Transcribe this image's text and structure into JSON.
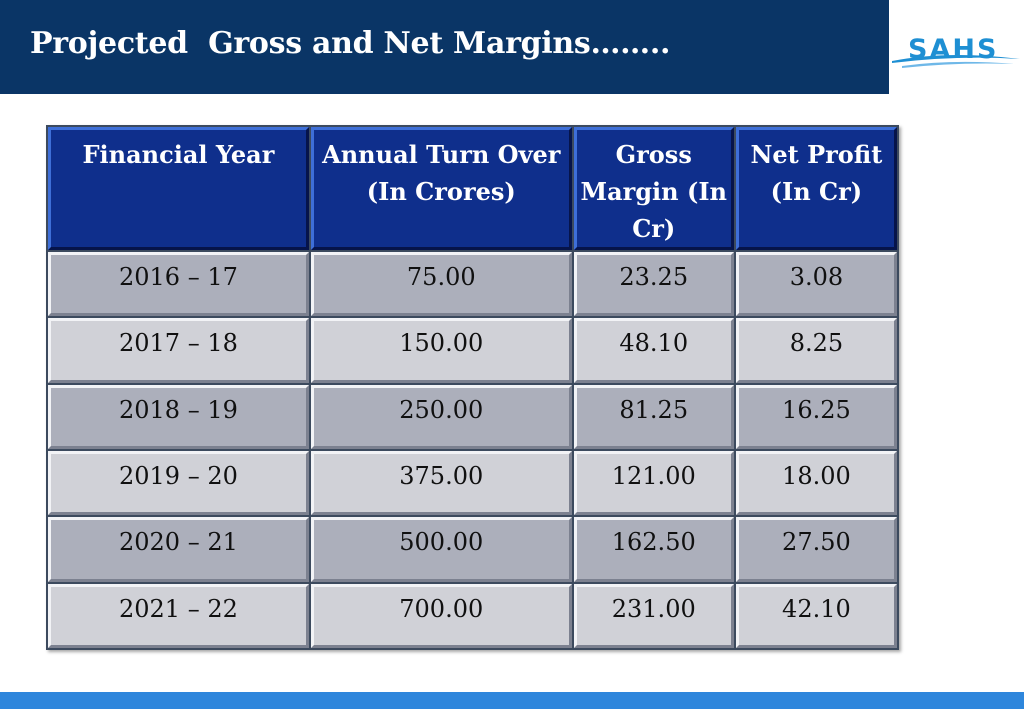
{
  "title": "Projected  Gross and Net Margins……..",
  "logo": {
    "text": "SAHS",
    "color": "#1e8fd3"
  },
  "colors": {
    "title_bar": "#0a3566",
    "header_cells": "#0f2f8c",
    "row_dark": "#acafbb",
    "row_light": "#d0d1d7",
    "bottom_bar": "#2e86dc"
  },
  "table": {
    "headers": [
      "Financial Year",
      "Annual Turn Over (In Crores)",
      "Gross Margin (In Cr)",
      "Net Profit (In Cr)"
    ],
    "rows": [
      [
        "2016 – 17",
        "75.00",
        "23.25",
        "3.08"
      ],
      [
        "2017 – 18",
        "150.00",
        "48.10",
        "8.25"
      ],
      [
        "2018 – 19",
        "250.00",
        "81.25",
        "16.25"
      ],
      [
        "2019 – 20",
        "375.00",
        "121.00",
        "18.00"
      ],
      [
        "2020 – 21",
        "500.00",
        "162.50",
        "27.50"
      ],
      [
        "2021 – 22",
        "700.00",
        "231.00",
        "42.10"
      ]
    ]
  }
}
